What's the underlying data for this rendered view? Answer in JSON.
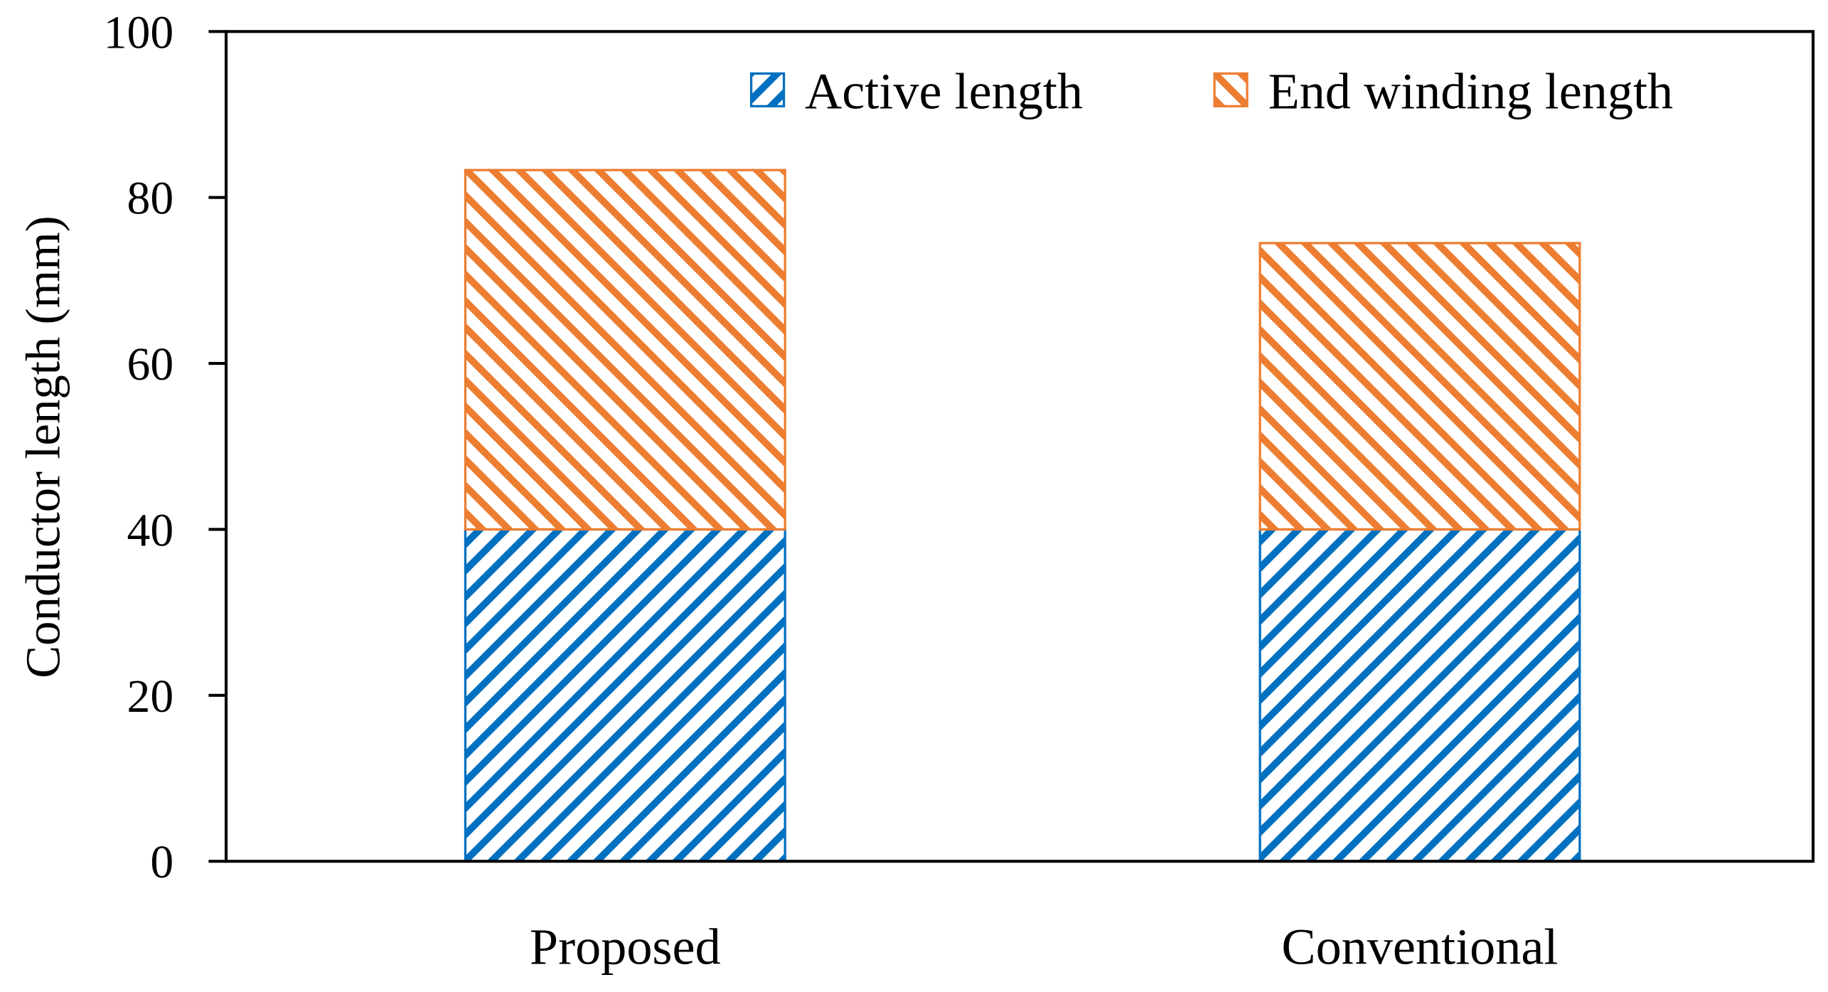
{
  "chart_data": {
    "type": "stacked-bar",
    "title": "",
    "xlabel": "",
    "ylabel": "Conductor length (mm)",
    "ylim": [
      0,
      100
    ],
    "yticks": [
      0,
      20,
      40,
      60,
      80,
      100
    ],
    "categories": [
      "Proposed",
      "Conventional"
    ],
    "series": [
      {
        "name": "Active length",
        "values": [
          40,
          40
        ],
        "color": "#0070C0",
        "hatch": "forward-diagonal"
      },
      {
        "name": "End winding length",
        "values": [
          43.3,
          34.5
        ],
        "color": "#ED7D31",
        "hatch": "backward-diagonal"
      }
    ],
    "legend_position": "top-right",
    "grid": false
  }
}
